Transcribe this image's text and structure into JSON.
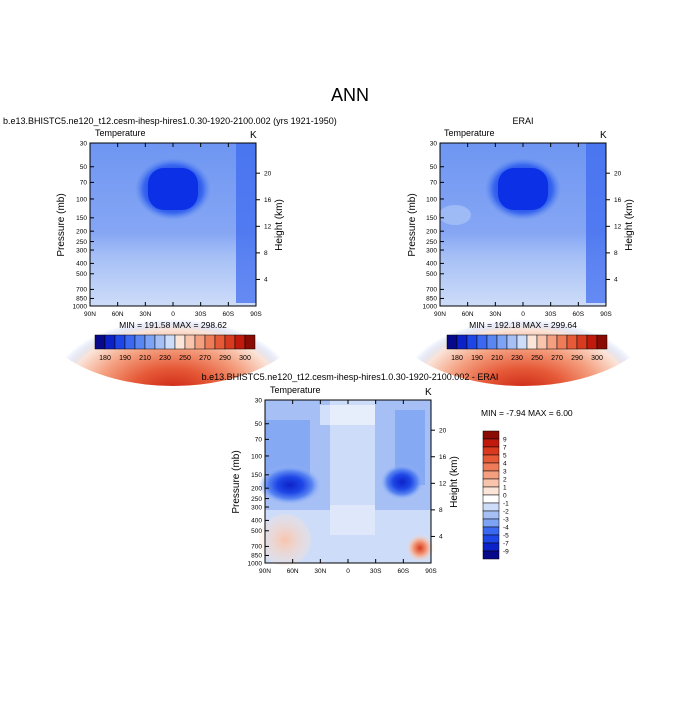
{
  "page": {
    "title": "ANN",
    "colors": {
      "temp_palette": [
        "#08088a",
        "#0c22c8",
        "#1e46e6",
        "#3a68f0",
        "#5a86f2",
        "#7ea2f4",
        "#a6c0f6",
        "#cddcf8",
        "#fbe4d8",
        "#f8c4ac",
        "#f4a080",
        "#ee7c58",
        "#e65a38",
        "#d83a20",
        "#c01a0c",
        "#8a0a04"
      ],
      "diff_palette": [
        "#08088a",
        "#0c22c8",
        "#1e46e6",
        "#3a68f0",
        "#7ea2f4",
        "#a6c0f6",
        "#cddcf8",
        "#ffffff",
        "#fbe4d8",
        "#f8c4ac",
        "#f4a080",
        "#ee7c58",
        "#e65a38",
        "#d83a20",
        "#c01a0c",
        "#8a0a04"
      ]
    }
  },
  "chart_data": [
    {
      "type": "heatmap",
      "title": "b.e13.BHISTC5.ne120_t12.cesm-ihesp-hires1.0.30-1920-2100.002 (yrs 1921-1950)",
      "left_label": "Temperature",
      "unit": "K",
      "ylabel": "Pressure (mb)",
      "ylabel_right": "Height (km)",
      "x_ticks": [
        "90N",
        "60N",
        "30N",
        "0",
        "30S",
        "60S",
        "90S"
      ],
      "y_ticks": [
        "30",
        "50",
        "70",
        "100",
        "150",
        "200",
        "250",
        "300",
        "400",
        "500",
        "700",
        "850",
        "1000"
      ],
      "y_ticks_right": [
        "20",
        "16",
        "12",
        "8",
        "4"
      ],
      "min_max": "MIN = 191.58   MAX = 298.62",
      "levels": [
        "180",
        "190",
        "210",
        "230",
        "250",
        "270",
        "290",
        "300"
      ]
    },
    {
      "type": "heatmap",
      "title": "ERAI",
      "left_label": "Temperature",
      "unit": "K",
      "ylabel": "Pressure (mb)",
      "ylabel_right": "Height (km)",
      "x_ticks": [
        "90N",
        "60N",
        "30N",
        "0",
        "30S",
        "60S",
        "90S"
      ],
      "y_ticks": [
        "30",
        "50",
        "70",
        "100",
        "150",
        "200",
        "250",
        "300",
        "400",
        "500",
        "700",
        "850",
        "1000"
      ],
      "y_ticks_right": [
        "20",
        "16",
        "12",
        "8",
        "4"
      ],
      "min_max": "MIN = 192.18   MAX = 299.64",
      "levels": [
        "180",
        "190",
        "210",
        "230",
        "250",
        "270",
        "290",
        "300"
      ]
    },
    {
      "type": "heatmap",
      "title": "b.e13.BHISTC5.ne120_t12.cesm-ihesp-hires1.0.30-1920-2100.002 - ERAI",
      "left_label": "Temperature",
      "unit": "K",
      "ylabel": "Pressure (mb)",
      "ylabel_right": "Height (km)",
      "x_ticks": [
        "90N",
        "60N",
        "30N",
        "0",
        "30S",
        "60S",
        "90S"
      ],
      "y_ticks": [
        "30",
        "50",
        "70",
        "100",
        "150",
        "200",
        "250",
        "300",
        "400",
        "500",
        "700",
        "850",
        "1000"
      ],
      "y_ticks_right": [
        "20",
        "16",
        "12",
        "8",
        "4"
      ],
      "min_max": "MIN =  -7.94  MAX =   6.00",
      "levels": [
        "9",
        "7",
        "5",
        "4",
        "3",
        "2",
        "1",
        "0",
        "-1",
        "-2",
        "-3",
        "-4",
        "-5",
        "-7",
        "-9"
      ]
    }
  ]
}
